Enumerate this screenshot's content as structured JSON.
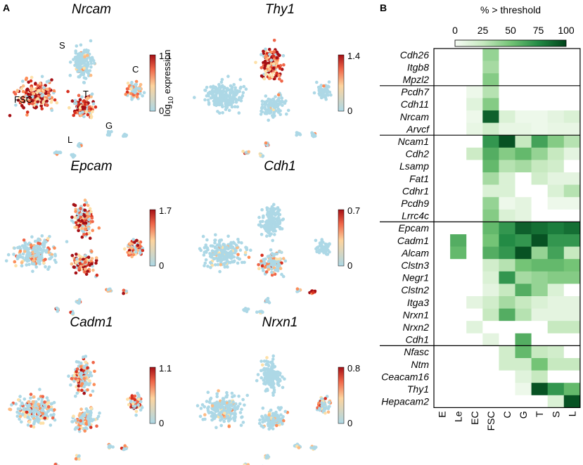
{
  "panels": {
    "a": "A",
    "b": "B"
  },
  "colorbar_axis_label": {
    "base": "log",
    "subscript": "10",
    "rest": " expression"
  },
  "umap_panels": [
    {
      "gene": "Nrcam",
      "cbar_max": "1.1",
      "cbar_min": "0",
      "pattern": "nrcam",
      "clusters": [
        {
          "name": "S"
        },
        {
          "name": "C"
        },
        {
          "name": "FSC"
        },
        {
          "name": "T"
        },
        {
          "name": "G"
        },
        {
          "name": "L"
        }
      ]
    },
    {
      "gene": "Thy1",
      "cbar_max": "1.4",
      "cbar_min": "0",
      "pattern": "thy1",
      "clusters": []
    },
    {
      "gene": "Epcam",
      "cbar_max": "1.7",
      "cbar_min": "0",
      "pattern": "epcam",
      "clusters": []
    },
    {
      "gene": "Cdh1",
      "cbar_max": "0.7",
      "cbar_min": "0",
      "pattern": "cdh1",
      "clusters": []
    },
    {
      "gene": "Cadm1",
      "cbar_max": "1.1",
      "cbar_min": "0",
      "pattern": "cadm1",
      "clusters": []
    },
    {
      "gene": "Nrxn1",
      "cbar_max": "0.8",
      "cbar_min": "0",
      "pattern": "nrxn1",
      "clusters": []
    }
  ],
  "colors": {
    "expr_low": "#add8e6",
    "expr_mid": "#fdd49e",
    "expr_high": "#a50f15",
    "heat_low": "#f7fcf5",
    "heat_high": "#00441b"
  },
  "chart_data": {
    "type": "heatmap",
    "title": "% > threshold",
    "legend_ticks": [
      "0",
      "25",
      "50",
      "75",
      "100"
    ],
    "legend_range": [
      0,
      100
    ],
    "columns": [
      "E",
      "Le",
      "EC",
      "FSC",
      "C",
      "G",
      "T",
      "S",
      "L"
    ],
    "rows": [
      "Cdh26",
      "Itgb8",
      "Mpzl2",
      "Pcdh7",
      "Cdh11",
      "Nrcam",
      "Arvcf",
      "Ncam1",
      "Cdh2",
      "Lsamp",
      "Fat1",
      "Cdhr1",
      "Pcdh9",
      "Lrrc4c",
      "Epcam",
      "Cadm1",
      "Alcam",
      "Clstn3",
      "Negr1",
      "Clstn2",
      "Itga3",
      "Nrxn1",
      "Nrxn2",
      "Cdh1",
      "Nfasc",
      "Ntm",
      "Ceacam16",
      "Thy1",
      "Hepacam2"
    ],
    "group_breaks_after_row": [
      2,
      6,
      13,
      23
    ],
    "values": [
      [
        0,
        0,
        0,
        40,
        0,
        0,
        0,
        0,
        0
      ],
      [
        0,
        0,
        0,
        35,
        0,
        0,
        0,
        0,
        0
      ],
      [
        0,
        0,
        0,
        45,
        0,
        0,
        0,
        0,
        0
      ],
      [
        0,
        0,
        5,
        30,
        0,
        0,
        0,
        0,
        0
      ],
      [
        0,
        0,
        12,
        45,
        0,
        0,
        0,
        0,
        0
      ],
      [
        0,
        0,
        5,
        90,
        15,
        5,
        5,
        10,
        15
      ],
      [
        0,
        0,
        8,
        20,
        8,
        8,
        5,
        8,
        8
      ],
      [
        0,
        0,
        0,
        70,
        95,
        25,
        65,
        45,
        30
      ],
      [
        0,
        0,
        22,
        60,
        45,
        55,
        40,
        25,
        10
      ],
      [
        0,
        0,
        0,
        55,
        30,
        35,
        25,
        20,
        0
      ],
      [
        0,
        0,
        0,
        35,
        15,
        0,
        20,
        10,
        10
      ],
      [
        0,
        0,
        0,
        15,
        15,
        0,
        0,
        15,
        30
      ],
      [
        0,
        0,
        0,
        40,
        5,
        10,
        0,
        5,
        5
      ],
      [
        0,
        0,
        0,
        45,
        15,
        10,
        0,
        0,
        0
      ],
      [
        0,
        0,
        0,
        55,
        70,
        90,
        85,
        80,
        85
      ],
      [
        0,
        60,
        0,
        50,
        75,
        70,
        95,
        70,
        70
      ],
      [
        0,
        55,
        0,
        60,
        70,
        95,
        40,
        65,
        25
      ],
      [
        0,
        0,
        0,
        20,
        30,
        50,
        55,
        55,
        50
      ],
      [
        0,
        0,
        0,
        15,
        70,
        35,
        40,
        45,
        45
      ],
      [
        0,
        0,
        0,
        10,
        25,
        60,
        40,
        15,
        0
      ],
      [
        0,
        0,
        10,
        20,
        35,
        25,
        15,
        10,
        10
      ],
      [
        0,
        0,
        0,
        25,
        60,
        30,
        10,
        10,
        10
      ],
      [
        0,
        0,
        12,
        0,
        0,
        0,
        0,
        25,
        25
      ],
      [
        0,
        0,
        0,
        10,
        0,
        60,
        0,
        0,
        0
      ],
      [
        0,
        0,
        0,
        0,
        20,
        55,
        25,
        20,
        0
      ],
      [
        0,
        0,
        0,
        0,
        20,
        20,
        50,
        25,
        25
      ],
      [
        0,
        0,
        0,
        0,
        0,
        12,
        25,
        0,
        0
      ],
      [
        0,
        0,
        0,
        0,
        0,
        5,
        95,
        70,
        55
      ],
      [
        0,
        0,
        0,
        0,
        0,
        0,
        0,
        15,
        95
      ]
    ]
  }
}
